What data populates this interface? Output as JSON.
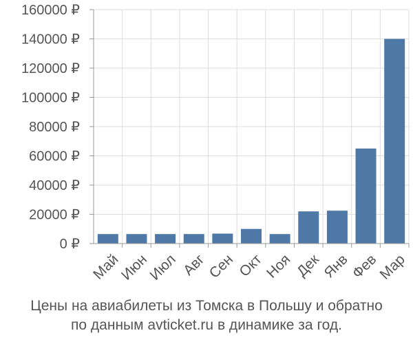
{
  "chart_data": {
    "type": "bar",
    "categories": [
      "Май",
      "Июн",
      "Июл",
      "Авг",
      "Сен",
      "Окт",
      "Ноя",
      "Дек",
      "Янв",
      "Фев",
      "Мар"
    ],
    "values": [
      6500,
      6500,
      6500,
      6500,
      6800,
      10000,
      6500,
      22000,
      22500,
      65000,
      140000
    ],
    "ylim": [
      0,
      160000
    ],
    "yticks": [
      0,
      20000,
      40000,
      60000,
      80000,
      100000,
      120000,
      140000,
      160000
    ],
    "ytick_labels": [
      "0 ₽",
      "20000 ₽",
      "40000 ₽",
      "60000 ₽",
      "80000 ₽",
      "100000 ₽",
      "120000 ₽",
      "140000 ₽",
      "160000 ₽"
    ],
    "bar_color": "#4e79a7",
    "grid": true
  },
  "caption": {
    "line1": "Цены на авиабилеты из Томска в Польшу и обратно",
    "line2": "по данным avticket.ru в динамике за год."
  }
}
